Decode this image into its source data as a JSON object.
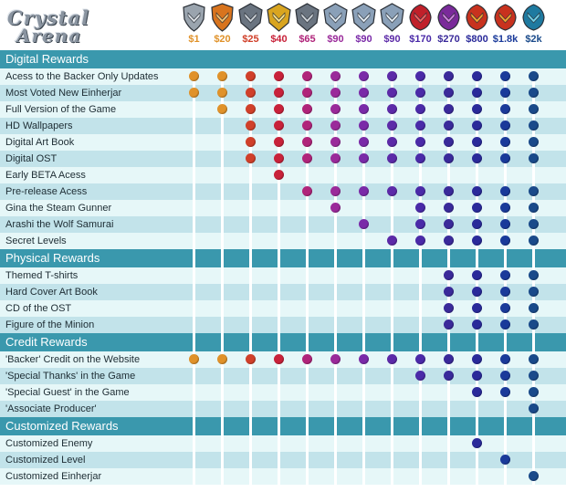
{
  "logo": {
    "line1": "Crystal",
    "line2": "Arena"
  },
  "tiers": [
    {
      "price": "$1",
      "color": "#e0922a",
      "icon": "silver-shield-icon"
    },
    {
      "price": "$20",
      "color": "#e0922a",
      "icon": "orange-shield-icon"
    },
    {
      "price": "$25",
      "color": "#d0402a",
      "icon": "chevron-emblem-icon"
    },
    {
      "price": "$40",
      "color": "#c8223a",
      "icon": "gold-chevron-emblem-icon"
    },
    {
      "price": "$65",
      "color": "#b0247a",
      "icon": "crossed-swords-emblem-icon"
    },
    {
      "price": "$90",
      "color": "#9a2a9a",
      "icon": "helmet-emblem-icon"
    },
    {
      "price": "$90",
      "color": "#7a2aa8",
      "icon": "helmet-emblem-icon"
    },
    {
      "price": "$90",
      "color": "#5c2aa8",
      "icon": "helmet-emblem-icon"
    },
    {
      "price": "$170",
      "color": "#4a2aa8",
      "icon": "red-demon-icon"
    },
    {
      "price": "$270",
      "color": "#3a2a9a",
      "icon": "purple-demon-icon"
    },
    {
      "price": "$800",
      "color": "#2a2a9a",
      "icon": "red-dragon-icon"
    },
    {
      "price": "$1.8k",
      "color": "#1a3a9a",
      "icon": "red-dragon-icon"
    },
    {
      "price": "$2k",
      "color": "#1a4a8a",
      "icon": "blue-dragon-icon"
    }
  ],
  "sections": [
    {
      "title": "Digital Rewards",
      "rows": [
        {
          "label": "Acess to the Backer Only Updates",
          "start": 0,
          "end": 12
        },
        {
          "label": "Most Voted New Einherjar",
          "start": 0,
          "end": 12
        },
        {
          "label": "Full Version of the Game",
          "start": 1,
          "end": 12
        },
        {
          "label": "HD Wallpapers",
          "start": 2,
          "end": 12
        },
        {
          "label": "Digital Art Book",
          "start": 2,
          "end": 12
        },
        {
          "label": "Digital OST",
          "start": 2,
          "end": 12
        },
        {
          "label": "Early BETA Acess",
          "start": 3,
          "end": 3
        },
        {
          "label": "Pre-release Acess",
          "start": 4,
          "end": 12
        },
        {
          "label": "Gina the Steam Gunner",
          "start": 5,
          "end": 12,
          "skip": [
            6,
            7
          ]
        },
        {
          "label": "Arashi the Wolf Samurai",
          "start": 6,
          "end": 12,
          "skip": [
            7
          ]
        },
        {
          "label": "Secret Levels",
          "start": 7,
          "end": 12
        }
      ]
    },
    {
      "title": "Physical Rewards",
      "rows": [
        {
          "label": "Themed T-shirts",
          "start": 9,
          "end": 12
        },
        {
          "label": "Hard Cover Art Book",
          "start": 9,
          "end": 12
        },
        {
          "label": "CD of the OST",
          "start": 9,
          "end": 12
        },
        {
          "label": "Figure of the Minion",
          "start": 9,
          "end": 12
        }
      ]
    },
    {
      "title": "Credit Rewards",
      "rows": [
        {
          "label": "'Backer' Credit on the Website",
          "start": 0,
          "end": 12
        },
        {
          "label": "'Special Thanks' in the Game",
          "start": 8,
          "end": 12
        },
        {
          "label": "'Special Guest' in the Game",
          "start": 10,
          "end": 12
        },
        {
          "label": "'Associate Producer'",
          "start": 12,
          "end": 12
        }
      ]
    },
    {
      "title": "Customized Rewards",
      "rows": [
        {
          "label": "Customized Enemy",
          "start": 10,
          "end": 10
        },
        {
          "label": "Customized Level",
          "start": 11,
          "end": 11
        },
        {
          "label": "Customized Einherjar",
          "start": 12,
          "end": 12
        }
      ]
    }
  ]
}
